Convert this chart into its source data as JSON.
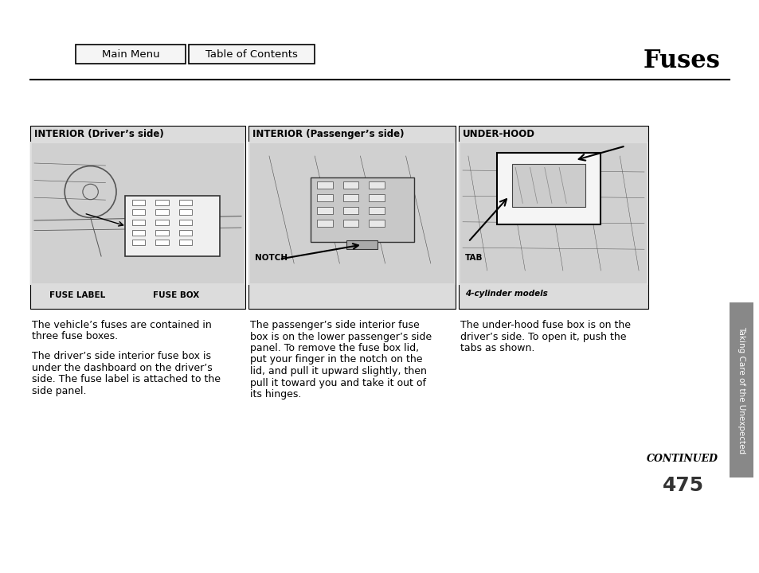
{
  "title": "Fuses",
  "page_number": "475",
  "continued_text": "CONTINUED",
  "nav_buttons": [
    "Main Menu",
    "Table of Contents"
  ],
  "sidebar_text": "Taking Care of the Unexpected",
  "panel1": {
    "header": "INTERIOR (Driver’s side)",
    "label1": "FUSE LABEL",
    "label2": "FUSE BOX",
    "text1": "The vehicle’s fuses are contained in\nthree fuse boxes.",
    "text2": "The driver’s side interior fuse box is\nunder the dashboard on the driver’s\nside. The fuse label is attached to the\nside panel."
  },
  "panel2": {
    "header": "INTERIOR (Passenger’s side)",
    "label1": "NOTCH",
    "text1": "The passenger’s side interior fuse\nbox is on the lower passenger’s side\npanel. To remove the fuse box lid,\nput your finger in the notch on the\nlid, and pull it upward slightly, then\npull it toward you and take it out of\nits hinges."
  },
  "panel3": {
    "header": "UNDER-HOOD",
    "label1": "TAB",
    "label2": "4-cylinder models",
    "text1": "The under-hood fuse box is on the\ndriver’s side. To open it, push the\ntabs as shown."
  },
  "bg_color": "#ffffff",
  "panel_bg": "#dcdcdc",
  "border_color": "#000000",
  "text_color": "#000000",
  "sidebar_bg": "#888888",
  "sidebar_text_color": "#ffffff"
}
